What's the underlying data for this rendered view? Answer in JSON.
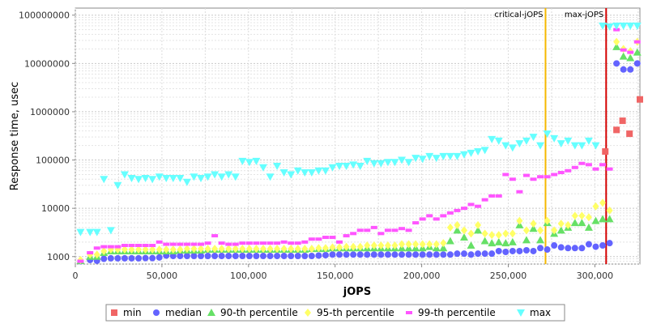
{
  "chart_data": {
    "type": "scatter",
    "xlabel": "jOPS",
    "ylabel": "Response time, usec",
    "xlim": [
      0,
      326000
    ],
    "ylim": [
      700,
      140000000
    ],
    "y_scale": "log",
    "grid": true,
    "legend_placement": "bottom",
    "x_ticks": [
      0,
      50000,
      100000,
      150000,
      200000,
      250000,
      300000
    ],
    "x_tick_labels": [
      "0",
      "50,000",
      "100,000",
      "150,000",
      "200,000",
      "250,000",
      "300,000"
    ],
    "y_ticks": [
      1000,
      10000,
      100000,
      1000000,
      10000000,
      100000000
    ],
    "y_tick_labels": [
      "1000",
      "10000",
      "100000",
      "1000000",
      "10000000",
      "100000000"
    ],
    "vertical_markers": [
      {
        "label": "critical-jOPS",
        "x": 271500,
        "color": "#f5b800"
      },
      {
        "label": "max-jOPS",
        "x": 306500,
        "color": "#d40000"
      }
    ],
    "series": [
      {
        "name": "min",
        "color": "#f06565",
        "marker": "square",
        "x": [
          306000,
          312500,
          316000,
          320000,
          326000
        ],
        "y": [
          150000,
          420000,
          650000,
          350000,
          1800000
        ]
      },
      {
        "name": "median",
        "color": "#6363ff",
        "marker": "circle",
        "x": [
          3000,
          8500,
          12500,
          16500,
          20500,
          24500,
          28500,
          32500,
          36500,
          40500,
          44500,
          48500,
          52500,
          56500,
          60500,
          64500,
          68500,
          72500,
          76500,
          80500,
          84500,
          88500,
          92500,
          96500,
          100500,
          104500,
          108500,
          112500,
          116500,
          120500,
          124500,
          128500,
          132500,
          136500,
          140500,
          144500,
          148500,
          152500,
          156500,
          160500,
          164500,
          168500,
          172500,
          176500,
          180500,
          184500,
          188500,
          192500,
          196500,
          200500,
          204500,
          208500,
          212500,
          216500,
          220500,
          224500,
          228500,
          232500,
          236500,
          240500,
          244500,
          248500,
          252500,
          256500,
          260500,
          264500,
          268500,
          272500,
          276500,
          280500,
          284500,
          288500,
          292500,
          296500,
          300500,
          304500,
          308500,
          312500,
          316500,
          320500,
          324500
        ],
        "y": [
          800,
          850,
          820,
          900,
          920,
          920,
          920,
          920,
          920,
          930,
          930,
          960,
          1050,
          1030,
          1030,
          1030,
          1030,
          1030,
          1030,
          1030,
          1030,
          1030,
          1030,
          1030,
          1030,
          1030,
          1030,
          1030,
          1030,
          1030,
          1030,
          1030,
          1030,
          1030,
          1050,
          1070,
          1100,
          1100,
          1100,
          1100,
          1100,
          1100,
          1100,
          1100,
          1100,
          1100,
          1100,
          1100,
          1100,
          1100,
          1100,
          1100,
          1100,
          1100,
          1150,
          1150,
          1100,
          1150,
          1150,
          1150,
          1300,
          1250,
          1300,
          1300,
          1350,
          1300,
          1500,
          1400,
          1700,
          1550,
          1500,
          1500,
          1500,
          1800,
          1600,
          1700,
          1900,
          10000000,
          7500000,
          7500000,
          10000000
        ]
      },
      {
        "name": "90-th percentile",
        "color": "#66e066",
        "marker": "triangle-up",
        "x": [
          3000,
          8500,
          12500,
          16500,
          20500,
          24500,
          28500,
          32500,
          36500,
          40500,
          44500,
          48500,
          52500,
          56500,
          60500,
          64500,
          68500,
          72500,
          76500,
          80500,
          84500,
          88500,
          92500,
          96500,
          100500,
          104500,
          108500,
          112500,
          116500,
          120500,
          124500,
          128500,
          132500,
          136500,
          140500,
          144500,
          148500,
          152500,
          156500,
          160500,
          164500,
          168500,
          172500,
          176500,
          180500,
          184500,
          188500,
          192500,
          196500,
          200500,
          204500,
          208500,
          212500,
          216500,
          220500,
          224500,
          228500,
          232500,
          236500,
          240500,
          244500,
          248500,
          252500,
          256500,
          260500,
          264500,
          268500,
          272500,
          276500,
          280500,
          284500,
          288500,
          292500,
          296500,
          300500,
          304500,
          308500,
          312500,
          316500,
          320500,
          324500
        ],
        "y": [
          820,
          1000,
          1000,
          1200,
          1300,
          1300,
          1300,
          1300,
          1300,
          1300,
          1300,
          1300,
          1300,
          1300,
          1350,
          1350,
          1350,
          1350,
          1400,
          1400,
          1400,
          1400,
          1400,
          1400,
          1400,
          1400,
          1400,
          1400,
          1400,
          1400,
          1400,
          1400,
          1400,
          1450,
          1450,
          1450,
          1500,
          1500,
          1500,
          1500,
          1500,
          1500,
          1500,
          1500,
          1500,
          1500,
          1500,
          1500,
          1500,
          1500,
          1600,
          1500,
          1500,
          2100,
          3500,
          2500,
          1700,
          3500,
          2100,
          1900,
          2000,
          1900,
          2000,
          4500,
          2200,
          3800,
          2200,
          5000,
          3000,
          3500,
          4000,
          5000,
          5000,
          4000,
          5500,
          6000,
          6000,
          22000000,
          14000000,
          13000000,
          17000000
        ]
      },
      {
        "name": "95-th percentile",
        "color": "#ffff66",
        "marker": "diamond",
        "x": [
          3000,
          8500,
          12500,
          16500,
          20500,
          24500,
          28500,
          32500,
          36500,
          40500,
          44500,
          48500,
          52500,
          56500,
          60500,
          64500,
          68500,
          72500,
          76500,
          80500,
          84500,
          88500,
          92500,
          96500,
          100500,
          104500,
          108500,
          112500,
          116500,
          120500,
          124500,
          128500,
          132500,
          136500,
          140500,
          144500,
          148500,
          152500,
          156500,
          160500,
          164500,
          168500,
          172500,
          176500,
          180500,
          184500,
          188500,
          192500,
          196500,
          200500,
          204500,
          208500,
          212500,
          216500,
          220500,
          224500,
          228500,
          232500,
          236500,
          240500,
          244500,
          248500,
          252500,
          256500,
          260500,
          264500,
          268500,
          272500,
          276500,
          280500,
          284500,
          288500,
          292500,
          296500,
          300500,
          304500,
          308500,
          312500,
          316500,
          320500,
          324500
        ],
        "y": [
          850,
          1100,
          1100,
          1300,
          1400,
          1400,
          1400,
          1400,
          1400,
          1400,
          1400,
          1400,
          1400,
          1400,
          1400,
          1450,
          1450,
          1450,
          1450,
          1450,
          1450,
          1450,
          1450,
          1450,
          1450,
          1450,
          1450,
          1450,
          1450,
          1450,
          1450,
          1450,
          1450,
          1450,
          1500,
          1500,
          1550,
          1550,
          1600,
          1600,
          1600,
          1700,
          1700,
          1700,
          1700,
          1700,
          1800,
          1800,
          1800,
          1800,
          1800,
          1800,
          1900,
          4000,
          4500,
          3500,
          3000,
          4500,
          3000,
          2800,
          2800,
          3000,
          3000,
          5500,
          3500,
          4800,
          3500,
          5500,
          3500,
          4800,
          4500,
          7000,
          7000,
          6500,
          11000,
          13000,
          9000,
          28000000,
          20000000,
          18000000,
          28000000
        ]
      },
      {
        "name": "99-th percentile",
        "color": "#ff55ff",
        "marker": "hbar",
        "x": [
          3000,
          8500,
          12500,
          16500,
          20500,
          24500,
          28500,
          32500,
          36500,
          40500,
          44500,
          48500,
          52500,
          56500,
          60500,
          64500,
          68500,
          72500,
          76500,
          80500,
          84500,
          88500,
          92500,
          96500,
          100500,
          104500,
          108500,
          112500,
          116500,
          120500,
          124500,
          128500,
          132500,
          136500,
          140500,
          144500,
          148500,
          152500,
          156500,
          160500,
          164500,
          168500,
          172500,
          176500,
          180500,
          184500,
          188500,
          192500,
          196500,
          200500,
          204500,
          208500,
          212500,
          216500,
          220500,
          224500,
          228500,
          232500,
          236500,
          240500,
          244500,
          248500,
          252500,
          256500,
          260500,
          264500,
          268500,
          272500,
          276500,
          280500,
          284500,
          288500,
          292500,
          296500,
          300500,
          304500,
          308500,
          312500,
          316500,
          320500,
          324500
        ],
        "y": [
          800,
          1200,
          1500,
          1600,
          1600,
          1600,
          1700,
          1700,
          1700,
          1700,
          1700,
          2000,
          1800,
          1800,
          1800,
          1800,
          1800,
          1800,
          1900,
          2700,
          1900,
          1800,
          1800,
          1900,
          1900,
          1900,
          1900,
          1900,
          1900,
          2000,
          1900,
          1900,
          2000,
          2300,
          2300,
          2500,
          2500,
          2000,
          2700,
          3000,
          3500,
          3500,
          4000,
          3000,
          3500,
          3500,
          3800,
          3500,
          5000,
          6000,
          7000,
          6000,
          7000,
          8000,
          9000,
          10000,
          12000,
          11000,
          15000,
          18000,
          18000,
          50000,
          40000,
          22000,
          48000,
          40000,
          45000,
          45000,
          50000,
          55000,
          60000,
          70000,
          85000,
          80000,
          65000,
          80000,
          65000,
          50000000,
          19000000,
          17000000,
          28000000
        ]
      },
      {
        "name": "max",
        "color": "#66ffff",
        "marker": "triangle-down",
        "x": [
          3000,
          8500,
          12500,
          16500,
          20500,
          24500,
          28500,
          32500,
          36500,
          40500,
          44500,
          48500,
          52500,
          56500,
          60500,
          64500,
          68500,
          72500,
          76500,
          80500,
          84500,
          88500,
          92500,
          96500,
          100500,
          104500,
          108500,
          112500,
          116500,
          120500,
          124500,
          128500,
          132500,
          136500,
          140500,
          144500,
          148500,
          152500,
          156500,
          160500,
          164500,
          168500,
          172500,
          176500,
          180500,
          184500,
          188500,
          192500,
          196500,
          200500,
          204500,
          208500,
          212500,
          216500,
          220500,
          224500,
          228500,
          232500,
          236500,
          240500,
          244500,
          248500,
          252500,
          256500,
          260500,
          264500,
          268500,
          272500,
          276500,
          280500,
          284500,
          288500,
          292500,
          296500,
          300500,
          304500,
          308500,
          312500,
          316500,
          320500,
          324500
        ],
        "y": [
          3200,
          3200,
          3200,
          40000,
          3500,
          30000,
          50000,
          42000,
          40000,
          42000,
          40000,
          45000,
          42000,
          42000,
          42000,
          35000,
          45000,
          42000,
          45000,
          50000,
          45000,
          50000,
          45000,
          95000,
          90000,
          95000,
          70000,
          45000,
          75000,
          55000,
          50000,
          60000,
          55000,
          55000,
          60000,
          60000,
          70000,
          75000,
          75000,
          80000,
          75000,
          95000,
          85000,
          85000,
          90000,
          90000,
          100000,
          90000,
          110000,
          105000,
          120000,
          110000,
          120000,
          120000,
          120000,
          130000,
          140000,
          150000,
          160000,
          270000,
          250000,
          200000,
          180000,
          220000,
          250000,
          300000,
          200000,
          350000,
          280000,
          220000,
          250000,
          200000,
          200000,
          250000,
          200000,
          60000000,
          58000000,
          60000000,
          60000000,
          60000000,
          60000000
        ]
      }
    ]
  }
}
